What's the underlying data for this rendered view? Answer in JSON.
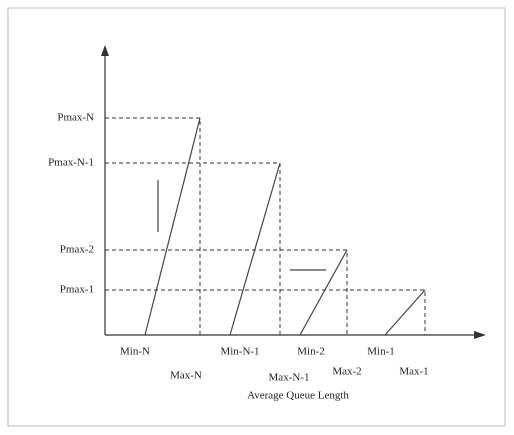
{
  "y_labels": [
    "Pmax-N",
    "Pmax-N-1",
    "Pmax-2",
    "Pmax-1"
  ],
  "x_labels": [
    "Min-N",
    "Max-N",
    "Min-N-1",
    "Max-N-1",
    "Min-2",
    "Max-2",
    "Min-1",
    "Max-1"
  ],
  "x_axis_title": "Average Queue Length"
}
